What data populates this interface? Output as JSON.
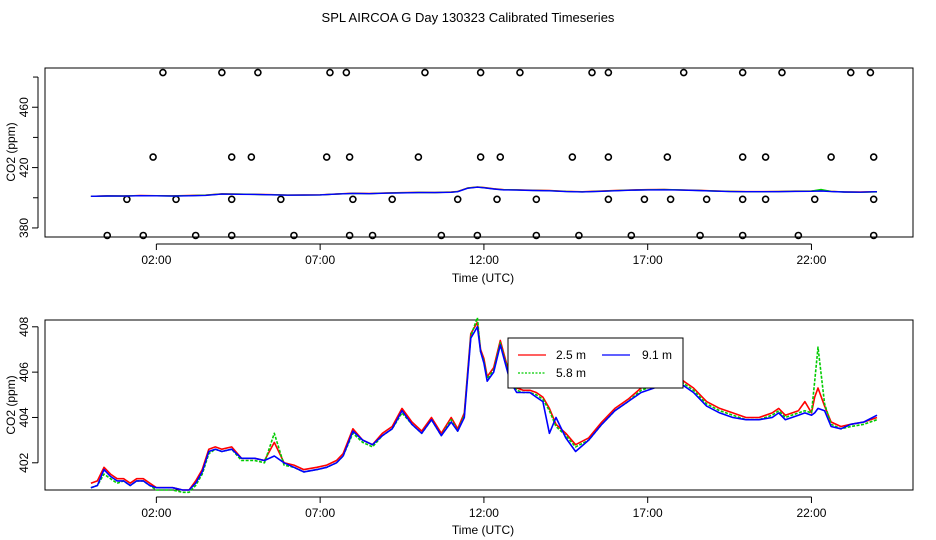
{
  "figure": {
    "title": "SPL AIRCOA G  Day 130323  Calibrated Timeseries"
  },
  "chart_data": [
    {
      "type": "line",
      "name": "top-panel",
      "xlabel": "Time (UTC)",
      "ylabel": "CO2 (ppm)",
      "xlim": [
        -1.4,
        25.1
      ],
      "ylim": [
        374,
        486
      ],
      "x_ticks": [
        2,
        7,
        12,
        17,
        22
      ],
      "x_tick_labels": [
        "02:00",
        "07:00",
        "12:00",
        "17:00",
        "22:00"
      ],
      "y_ticks": [
        380,
        420,
        460
      ],
      "y_tick_labels": [
        "380",
        "420",
        "460"
      ],
      "series": [
        {
          "name": "2.5 m",
          "color": "#ff0000",
          "x": [
            0,
            0.5,
            1,
            1.5,
            2,
            2.5,
            3,
            3.5,
            4,
            4.5,
            5,
            5.5,
            6,
            6.5,
            7,
            7.5,
            8,
            8.5,
            9,
            9.5,
            10,
            10.5,
            11,
            11.2,
            11.5,
            11.8,
            12,
            12.3,
            12.6,
            13,
            13.5,
            14,
            14.5,
            15,
            15.5,
            16,
            16.5,
            17,
            17.5,
            18,
            18.5,
            19,
            19.5,
            20,
            20.5,
            21,
            21.5,
            22,
            22.3,
            22.6,
            23,
            23.5,
            24
          ],
          "values": [
            401,
            401.3,
            401.2,
            401.5,
            401.4,
            401.3,
            401.5,
            401.8,
            402.6,
            402.4,
            402.3,
            402.1,
            401.8,
            401.9,
            402,
            402.5,
            403,
            402.8,
            403.2,
            403.4,
            403.6,
            403.5,
            403.8,
            404.2,
            406.5,
            407.2,
            406.8,
            406,
            405.4,
            405.3,
            405,
            404.8,
            404.3,
            404,
            404.4,
            404.8,
            405.2,
            405.4,
            405.5,
            405.2,
            405,
            404.6,
            404.3,
            404.1,
            404.1,
            404.2,
            404.4,
            404.5,
            405,
            404.3,
            403.9,
            403.8,
            404
          ]
        },
        {
          "name": "5.8 m",
          "color": "#00cc00",
          "x": [
            0,
            0.5,
            1,
            1.5,
            2,
            2.5,
            3,
            3.5,
            4,
            4.5,
            5,
            5.5,
            6,
            6.5,
            7,
            7.5,
            8,
            8.5,
            9,
            9.5,
            10,
            10.5,
            11,
            11.2,
            11.5,
            11.8,
            12,
            12.3,
            12.6,
            13,
            13.5,
            14,
            14.5,
            15,
            15.5,
            16,
            16.5,
            17,
            17.5,
            18,
            18.5,
            19,
            19.5,
            20,
            20.5,
            21,
            21.5,
            22,
            22.3,
            22.6,
            23,
            23.5,
            24
          ],
          "values": [
            401,
            401.2,
            401.2,
            401.4,
            401.3,
            401.2,
            401.4,
            401.7,
            402.5,
            402.4,
            402.2,
            402,
            401.8,
            401.8,
            401.9,
            402.4,
            402.9,
            402.7,
            403.1,
            403.3,
            403.5,
            403.4,
            403.7,
            404.1,
            406.4,
            407.1,
            406.7,
            405.9,
            405.3,
            405.2,
            404.9,
            404.7,
            404.2,
            403.9,
            404.3,
            404.7,
            405.1,
            405.3,
            405.4,
            405.2,
            404.9,
            404.5,
            404.2,
            404,
            404,
            404.1,
            404.3,
            404.4,
            405.5,
            404.2,
            403.8,
            403.7,
            403.9
          ]
        },
        {
          "name": "9.1 m",
          "color": "#0000ff",
          "x": [
            0,
            0.5,
            1,
            1.5,
            2,
            2.5,
            3,
            3.5,
            4,
            4.5,
            5,
            5.5,
            6,
            6.5,
            7,
            7.5,
            8,
            8.5,
            9,
            9.5,
            10,
            10.5,
            11,
            11.2,
            11.5,
            11.8,
            12,
            12.3,
            12.6,
            13,
            13.5,
            14,
            14.5,
            15,
            15.5,
            16,
            16.5,
            17,
            17.5,
            18,
            18.5,
            19,
            19.5,
            20,
            20.5,
            21,
            21.5,
            22,
            22.3,
            22.6,
            23,
            23.5,
            24
          ],
          "values": [
            401,
            401.2,
            401.1,
            401.4,
            401.3,
            401.1,
            401.3,
            401.6,
            402.4,
            402.3,
            402.2,
            402,
            401.7,
            401.8,
            401.9,
            402.4,
            402.9,
            402.7,
            403,
            403.2,
            403.4,
            403.4,
            403.6,
            404,
            406.3,
            407,
            406.6,
            405.8,
            405.2,
            405.1,
            404.8,
            404.6,
            404.1,
            403.9,
            404.2,
            404.6,
            405,
            405.2,
            405.3,
            405.1,
            404.8,
            404.4,
            404.1,
            404,
            404,
            404,
            404.2,
            404.3,
            404.5,
            404.1,
            403.8,
            403.7,
            404
          ]
        }
      ],
      "flag_markers": {
        "x": [
          1.1,
          2.6,
          4.3,
          5.8,
          8,
          9.2,
          11.2,
          12.4,
          13.6,
          15.8,
          16.9,
          17.7,
          18.8,
          19.9,
          20.6,
          22.1,
          23.9,
          0.5,
          1.6,
          3.2,
          4.3,
          6.2,
          7.9,
          8.6,
          10.7,
          11.8,
          13.6,
          14.9,
          16.5,
          18.6,
          19.9,
          21.6,
          23.9,
          1.9,
          4.3,
          4.9,
          7.2,
          7.9,
          10.0,
          11.9,
          12.5,
          14.7,
          15.8,
          17.6,
          19.9,
          20.6,
          22.6,
          23.9,
          2.2,
          4.0,
          5.1,
          7.3,
          7.8,
          10.2,
          11.9,
          13.1,
          15.3,
          15.8,
          18.1,
          19.9,
          21.1,
          23.2,
          23.8
        ],
        "values": [
          399,
          399,
          399,
          399,
          399,
          399,
          399,
          399,
          399,
          399,
          399,
          399,
          399,
          399,
          399,
          399,
          399,
          375,
          375,
          375,
          375,
          375,
          375,
          375,
          375,
          375,
          375,
          375,
          375,
          375,
          375,
          375,
          375,
          427,
          427,
          427,
          427,
          427,
          427,
          427,
          427,
          427,
          427,
          427,
          427,
          427,
          427,
          427,
          483,
          483,
          483,
          483,
          483,
          483,
          483,
          483,
          483,
          483,
          483,
          483,
          483,
          483,
          483
        ]
      }
    },
    {
      "type": "line",
      "name": "bottom-panel",
      "xlabel": "Time (UTC)",
      "ylabel": "CO2 (ppm)",
      "xlim": [
        -1.4,
        25.1
      ],
      "ylim": [
        400.8,
        408.3
      ],
      "x_ticks": [
        2,
        7,
        12,
        17,
        22
      ],
      "x_tick_labels": [
        "02:00",
        "07:00",
        "12:00",
        "17:00",
        "22:00"
      ],
      "y_ticks": [
        402,
        404,
        406,
        408
      ],
      "y_tick_labels": [
        "402",
        "404",
        "406",
        "408"
      ],
      "legend": {
        "placement": "top-center",
        "entries": [
          "2.5 m",
          "5.8 m",
          "9.1 m"
        ]
      },
      "series": [
        {
          "name": "2.5 m",
          "color": "#ff0000",
          "x": [
            0,
            0.2,
            0.4,
            0.6,
            0.8,
            1.0,
            1.2,
            1.4,
            1.6,
            1.8,
            2.0,
            2.2,
            2.5,
            2.8,
            3.0,
            3.2,
            3.4,
            3.6,
            3.8,
            4.0,
            4.3,
            4.6,
            5.0,
            5.3,
            5.6,
            5.9,
            6.2,
            6.5,
            6.9,
            7.2,
            7.5,
            7.7,
            8.0,
            8.3,
            8.6,
            8.9,
            9.2,
            9.5,
            9.8,
            10.1,
            10.4,
            10.7,
            11.0,
            11.2,
            11.4,
            11.6,
            11.8,
            11.9,
            12.0,
            12.1,
            12.3,
            12.5,
            12.8,
            13.0,
            13.2,
            13.4,
            13.6,
            13.8,
            14.0,
            14.2,
            14.5,
            14.8,
            15.2,
            15.6,
            16.0,
            16.4,
            16.8,
            17.2,
            17.5,
            17.8,
            18.1,
            18.4,
            18.8,
            19.2,
            19.6,
            20.0,
            20.4,
            20.8,
            21.0,
            21.2,
            21.6,
            21.8,
            22.0,
            22.1,
            22.2,
            22.4,
            22.6,
            22.9,
            23.2,
            23.6,
            24.0
          ],
          "values": [
            401.1,
            401.2,
            401.8,
            401.5,
            401.3,
            401.3,
            401.1,
            401.3,
            401.3,
            401.1,
            400.9,
            400.9,
            400.9,
            400.8,
            400.8,
            401.2,
            401.7,
            402.6,
            402.7,
            402.6,
            402.7,
            402.2,
            402.2,
            402.1,
            402.9,
            402.0,
            401.9,
            401.7,
            401.8,
            401.9,
            402.1,
            402.4,
            403.5,
            403.0,
            402.8,
            403.3,
            403.6,
            404.4,
            403.8,
            403.4,
            404.0,
            403.3,
            404.0,
            403.5,
            404.2,
            407.7,
            408.2,
            407.0,
            406.6,
            405.8,
            406.2,
            407.4,
            405.8,
            405.3,
            405.2,
            405.2,
            405.1,
            404.9,
            404.4,
            403.7,
            403.3,
            402.8,
            403.1,
            403.8,
            404.4,
            404.8,
            405.3,
            405.5,
            405.8,
            406.0,
            405.6,
            405.3,
            404.7,
            404.4,
            404.2,
            404.0,
            404.0,
            404.2,
            404.4,
            404.1,
            404.3,
            404.7,
            404.2,
            404.9,
            405.3,
            404.5,
            403.8,
            403.6,
            403.7,
            403.8,
            404.0
          ]
        },
        {
          "name": "5.8 m",
          "color": "#00cc00",
          "x": [
            0,
            0.2,
            0.4,
            0.6,
            0.8,
            1.0,
            1.2,
            1.4,
            1.6,
            1.8,
            2.0,
            2.2,
            2.5,
            2.8,
            3.0,
            3.2,
            3.4,
            3.6,
            3.8,
            4.0,
            4.3,
            4.6,
            5.0,
            5.3,
            5.6,
            5.9,
            6.2,
            6.5,
            6.9,
            7.2,
            7.5,
            7.7,
            8.0,
            8.3,
            8.6,
            8.9,
            9.2,
            9.5,
            9.8,
            10.1,
            10.4,
            10.7,
            11.0,
            11.2,
            11.4,
            11.6,
            11.8,
            11.9,
            12.0,
            12.1,
            12.3,
            12.5,
            12.8,
            13.0,
            13.2,
            13.4,
            13.6,
            13.8,
            14.0,
            14.2,
            14.5,
            14.8,
            15.2,
            15.6,
            16.0,
            16.4,
            16.8,
            17.2,
            17.5,
            17.8,
            18.1,
            18.4,
            18.8,
            19.2,
            19.6,
            20.0,
            20.4,
            20.8,
            21.0,
            21.2,
            21.6,
            21.8,
            22.0,
            22.1,
            22.2,
            22.4,
            22.6,
            22.9,
            23.2,
            23.6,
            24.0
          ],
          "values": [
            400.9,
            401.0,
            401.5,
            401.3,
            401.1,
            401.2,
            401.0,
            401.2,
            401.2,
            401.0,
            400.8,
            400.8,
            400.8,
            400.7,
            400.7,
            401.0,
            401.5,
            402.4,
            402.6,
            402.5,
            402.6,
            402.1,
            402.1,
            402.0,
            403.3,
            401.9,
            401.8,
            401.6,
            401.7,
            401.8,
            402.0,
            402.3,
            403.3,
            402.9,
            402.7,
            403.2,
            403.5,
            404.2,
            403.7,
            403.3,
            403.9,
            403.2,
            403.9,
            403.4,
            404.1,
            407.6,
            408.4,
            406.9,
            406.5,
            405.7,
            406.1,
            407.3,
            405.7,
            405.2,
            405.1,
            405.1,
            405.0,
            404.8,
            404.3,
            403.6,
            403.2,
            402.7,
            403.0,
            403.7,
            404.3,
            404.7,
            405.2,
            405.4,
            405.7,
            405.9,
            405.5,
            405.2,
            404.6,
            404.3,
            404.1,
            403.9,
            403.9,
            404.1,
            404.3,
            404.0,
            404.2,
            404.3,
            404.2,
            405.6,
            407.1,
            404.6,
            403.7,
            403.5,
            403.6,
            403.7,
            403.9
          ]
        },
        {
          "name": "9.1 m",
          "color": "#0000ff",
          "x": [
            0,
            0.2,
            0.4,
            0.6,
            0.8,
            1.0,
            1.2,
            1.4,
            1.6,
            1.8,
            2.0,
            2.2,
            2.5,
            2.8,
            3.0,
            3.2,
            3.4,
            3.6,
            3.8,
            4.0,
            4.3,
            4.6,
            5.0,
            5.3,
            5.6,
            5.9,
            6.2,
            6.5,
            6.9,
            7.2,
            7.5,
            7.7,
            8.0,
            8.3,
            8.6,
            8.9,
            9.2,
            9.5,
            9.8,
            10.1,
            10.4,
            10.7,
            11.0,
            11.2,
            11.4,
            11.6,
            11.8,
            11.9,
            12.0,
            12.1,
            12.3,
            12.5,
            12.8,
            13.0,
            13.2,
            13.4,
            13.6,
            13.8,
            14.0,
            14.2,
            14.5,
            14.8,
            15.2,
            15.6,
            16.0,
            16.4,
            16.8,
            17.2,
            17.5,
            17.8,
            18.1,
            18.4,
            18.8,
            19.2,
            19.6,
            20.0,
            20.4,
            20.8,
            21.0,
            21.2,
            21.6,
            21.8,
            22.0,
            22.1,
            22.2,
            22.4,
            22.6,
            22.9,
            23.2,
            23.6,
            24.0
          ],
          "values": [
            400.9,
            401.0,
            401.7,
            401.4,
            401.2,
            401.2,
            401.0,
            401.2,
            401.2,
            401.0,
            400.9,
            400.9,
            400.9,
            400.8,
            400.8,
            401.1,
            401.6,
            402.5,
            402.6,
            402.5,
            402.6,
            402.2,
            402.2,
            402.1,
            402.3,
            402.0,
            401.8,
            401.6,
            401.7,
            401.8,
            402.0,
            402.3,
            403.4,
            403.0,
            402.8,
            403.2,
            403.5,
            404.3,
            403.7,
            403.3,
            403.9,
            403.2,
            403.8,
            403.4,
            404.0,
            407.5,
            408.0,
            406.9,
            406.4,
            405.6,
            406.0,
            407.2,
            405.6,
            405.1,
            405.1,
            405.1,
            404.9,
            404.7,
            403.3,
            404.0,
            403.1,
            402.5,
            403.0,
            403.7,
            404.3,
            404.7,
            405.1,
            405.3,
            405.6,
            405.8,
            405.4,
            405.1,
            404.5,
            404.2,
            404.0,
            403.9,
            403.9,
            404.0,
            404.2,
            403.9,
            404.1,
            404.2,
            404.1,
            404.2,
            404.4,
            404.3,
            403.6,
            403.5,
            403.7,
            403.8,
            404.1
          ]
        }
      ]
    }
  ]
}
